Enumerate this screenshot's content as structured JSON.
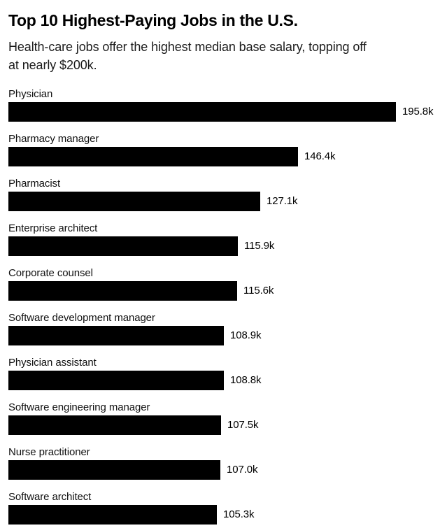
{
  "page": {
    "title": "Top 10 Highest-Paying Jobs in the U.S.",
    "subtitle_lines": [
      "Health-care jobs offer the highest median base salary, topping off",
      "at nearly $200k."
    ]
  },
  "chart_data": {
    "type": "bar",
    "orientation": "horizontal",
    "title": "Top 10 Highest-Paying Jobs in the U.S.",
    "subtitle": "Health-care jobs offer the highest median base salary, topping off at nearly $200k.",
    "categories": [
      "Physician",
      "Pharmacy manager",
      "Pharmacist",
      "Enterprise architect",
      "Corporate counsel",
      "Software development manager",
      "Physician assistant",
      "Software engineering manager",
      "Nurse practitioner",
      "Software architect"
    ],
    "values": [
      195.8,
      146.4,
      127.1,
      115.9,
      115.6,
      108.9,
      108.8,
      107.5,
      107.0,
      105.3
    ],
    "value_labels": [
      "195.8k",
      "146.4k",
      "127.1k",
      "115.9k",
      "115.6k",
      "108.9k",
      "108.8k",
      "107.5k",
      "107.0k",
      "105.3k"
    ],
    "value_suffix": "k",
    "xlim": [
      0,
      195.8
    ],
    "bar_color": "#000000",
    "label_color": "#111111",
    "background": "#ffffff",
    "grid": false,
    "legend": false,
    "axis_ticks": false
  }
}
